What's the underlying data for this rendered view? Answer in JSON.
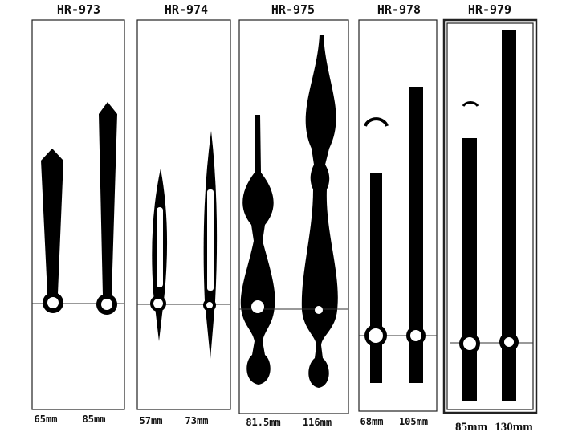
{
  "panels": [
    {
      "title": "HR-973",
      "hands": [
        {
          "label": "65mm"
        },
        {
          "label": "85mm"
        }
      ]
    },
    {
      "title": "HR-974",
      "hands": [
        {
          "label": "57mm"
        },
        {
          "label": "73mm"
        }
      ]
    },
    {
      "title": "HR-975",
      "hands": [
        {
          "label": "81.5mm"
        },
        {
          "label": "116mm"
        }
      ]
    },
    {
      "title": "HR-978",
      "hands": [
        {
          "label": "68mm"
        },
        {
          "label": "105mm"
        }
      ]
    },
    {
      "title": "HR-979",
      "hands": [
        {
          "label": "85mm"
        },
        {
          "label": "130mm"
        }
      ]
    }
  ]
}
